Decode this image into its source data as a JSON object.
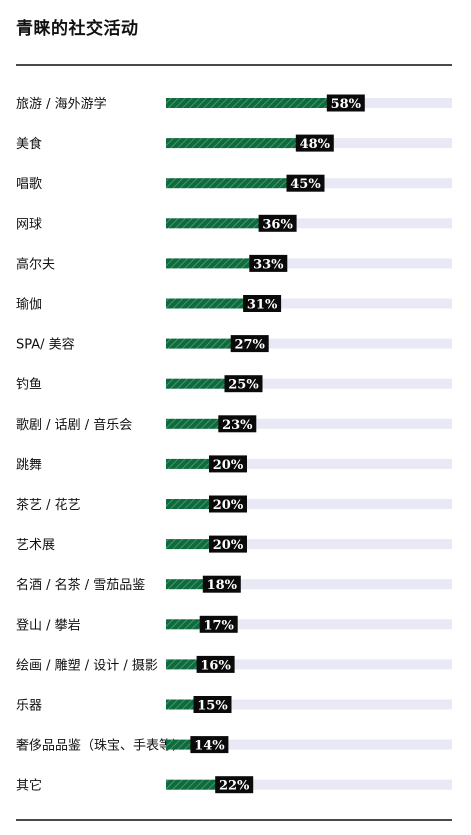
{
  "title": "青睐的社交活动",
  "colors": {
    "bar": "#0e6b3d",
    "bar_stripe": "#5fa47f",
    "track": "#e8e9f4",
    "label_bg": "#0a0a0a",
    "rule": "#4a4a4a"
  },
  "chart_data": {
    "type": "bar",
    "orientation": "horizontal",
    "title": "青睐的社交活动",
    "categories": [
      "旅游 / 海外游学",
      "美食",
      "唱歌",
      "网球",
      "高尔夫",
      "瑜伽",
      "SPA/ 美容",
      "钓鱼",
      "歌剧 / 话剧 / 音乐会",
      "跳舞",
      "茶艺 / 花艺",
      "艺术展",
      "名酒 / 名茶 / 雪茄品鉴",
      "登山 / 攀岩",
      "绘画 / 雕塑 / 设计 / 摄影",
      "乐器",
      "奢侈品品鉴（珠宝、手表等）",
      "其它"
    ],
    "values": [
      58,
      48,
      45,
      36,
      33,
      31,
      27,
      25,
      23,
      20,
      20,
      20,
      18,
      17,
      16,
      15,
      14,
      22
    ],
    "value_labels": [
      "58%",
      "48%",
      "45%",
      "36%",
      "33%",
      "31%",
      "27%",
      "25%",
      "23%",
      "20%",
      "20%",
      "20%",
      "18%",
      "17%",
      "16%",
      "15%",
      "14%",
      "22%"
    ],
    "unit": "%",
    "xlim": [
      0,
      100
    ],
    "grid": false,
    "legend": "none"
  }
}
